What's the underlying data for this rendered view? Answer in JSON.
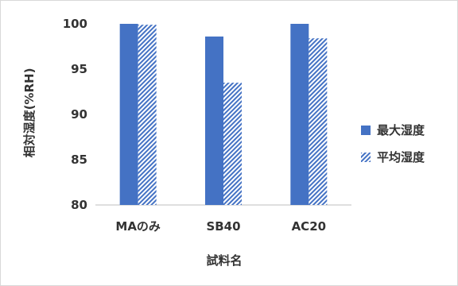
{
  "chart_data": {
    "type": "bar",
    "categories": [
      "MAのみ",
      "SB40",
      "AC20"
    ],
    "series": [
      {
        "name": "最大湿度",
        "values": [
          100,
          98.6,
          100
        ],
        "color": "#4472c4",
        "pattern": "solid"
      },
      {
        "name": "平均湿度",
        "values": [
          99.9,
          93.5,
          98.4
        ],
        "color": "#4472c4",
        "pattern": "diagonal-hatch"
      }
    ],
    "xlabel": "試料名",
    "ylabel": "相対湿度(%RH)",
    "ylim": [
      80,
      100
    ],
    "yticks": [
      80,
      85,
      90,
      95,
      100
    ],
    "grid": false,
    "legend": "right"
  }
}
